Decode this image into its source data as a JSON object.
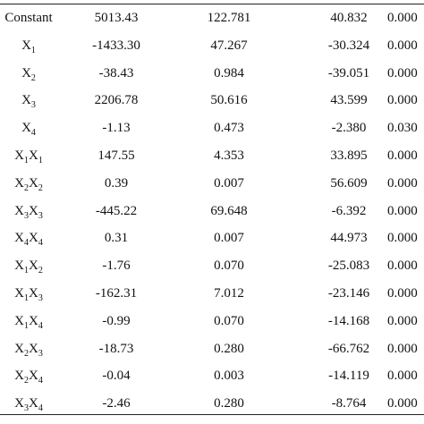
{
  "table": {
    "rows": [
      [
        "Constant",
        "5013.43",
        "122.781",
        "40.832",
        "0.000"
      ],
      [
        [
          [
            "X",
            "1"
          ]
        ],
        "-1433.30",
        "47.267",
        "-30.324",
        "0.000"
      ],
      [
        [
          [
            "X",
            "2"
          ]
        ],
        "-38.43",
        "0.984",
        "-39.051",
        "0.000"
      ],
      [
        [
          [
            "X",
            "3"
          ]
        ],
        "2206.78",
        "50.616",
        "43.599",
        "0.000"
      ],
      [
        [
          [
            "X",
            "4"
          ]
        ],
        "-1.13",
        "0.473",
        "-2.380",
        "0.030"
      ],
      [
        [
          [
            "X",
            "1"
          ],
          [
            "X",
            "1"
          ]
        ],
        "147.55",
        "4.353",
        "33.895",
        "0.000"
      ],
      [
        [
          [
            "X",
            "2"
          ],
          [
            "X",
            "2"
          ]
        ],
        "0.39",
        "0.007",
        "56.609",
        "0.000"
      ],
      [
        [
          [
            "X",
            "3"
          ],
          [
            "X",
            "3"
          ]
        ],
        "-445.22",
        "69.648",
        "-6.392",
        "0.000"
      ],
      [
        [
          [
            "X",
            "4"
          ],
          [
            "X",
            "4"
          ]
        ],
        "0.31",
        "0.007",
        "44.973",
        "0.000"
      ],
      [
        [
          [
            "X",
            "1"
          ],
          [
            "X",
            "2"
          ]
        ],
        "-1.76",
        "0.070",
        "-25.083",
        "0.000"
      ],
      [
        [
          [
            "X",
            "1"
          ],
          [
            "X",
            "3"
          ]
        ],
        "-162.31",
        "7.012",
        "-23.146",
        "0.000"
      ],
      [
        [
          [
            "X",
            "1"
          ],
          [
            "X",
            "4"
          ]
        ],
        "-0.99",
        "0.070",
        "-14.168",
        "0.000"
      ],
      [
        [
          [
            "X",
            "2"
          ],
          [
            "X",
            "3"
          ]
        ],
        "-18.73",
        "0.280",
        "-66.762",
        "0.000"
      ],
      [
        [
          [
            "X",
            "2"
          ],
          [
            "X",
            "4"
          ]
        ],
        "-0.04",
        "0.003",
        "-14.119",
        "0.000"
      ],
      [
        [
          [
            "X",
            "3"
          ],
          [
            "X",
            "4"
          ]
        ],
        "-2.46",
        "0.280",
        "-8.764",
        "0.000"
      ]
    ]
  }
}
